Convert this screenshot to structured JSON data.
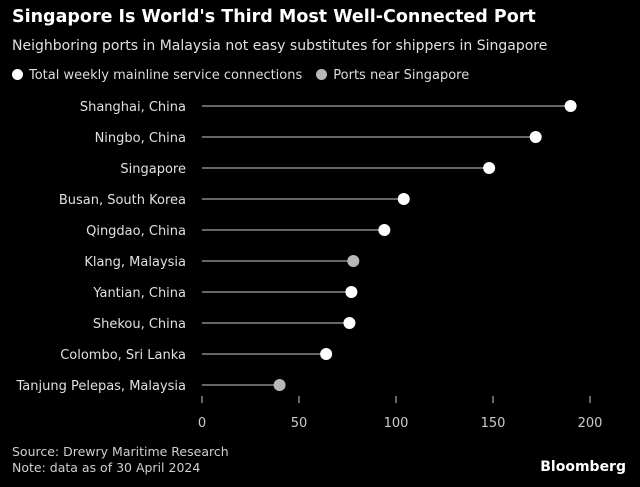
{
  "chart_data": {
    "type": "lollipop",
    "title": "Singapore Is World's Third Most Well-Connected Port",
    "subtitle": "Neighboring ports in Malaysia not easy substitutes for shippers in Singapore",
    "legend": [
      {
        "name": "Total weekly mainline service connections",
        "color": "#ffffff"
      },
      {
        "name": "Ports near Singapore",
        "color": "#b8b8b8"
      }
    ],
    "categories": [
      "Shanghai, China",
      "Ningbo, China",
      "Singapore",
      "Busan, South Korea",
      "Qingdao, China",
      "Klang, Malaysia",
      "Yantian, China",
      "Shekou, China",
      "Colombo, Sri Lanka",
      "Tanjung Pelepas, Malaysia"
    ],
    "values": [
      190,
      172,
      148,
      104,
      94,
      78,
      77,
      76,
      64,
      40
    ],
    "near_singapore": [
      false,
      false,
      false,
      false,
      false,
      true,
      false,
      false,
      false,
      true
    ],
    "xlim": [
      0,
      200
    ],
    "xticks": [
      0,
      50,
      100,
      150,
      200
    ],
    "legend_position": "top-left"
  },
  "footer": {
    "source": "Source: Drewry Maritime Research",
    "note": "Note: data as of 30 April 2024",
    "brand": "Bloomberg"
  }
}
